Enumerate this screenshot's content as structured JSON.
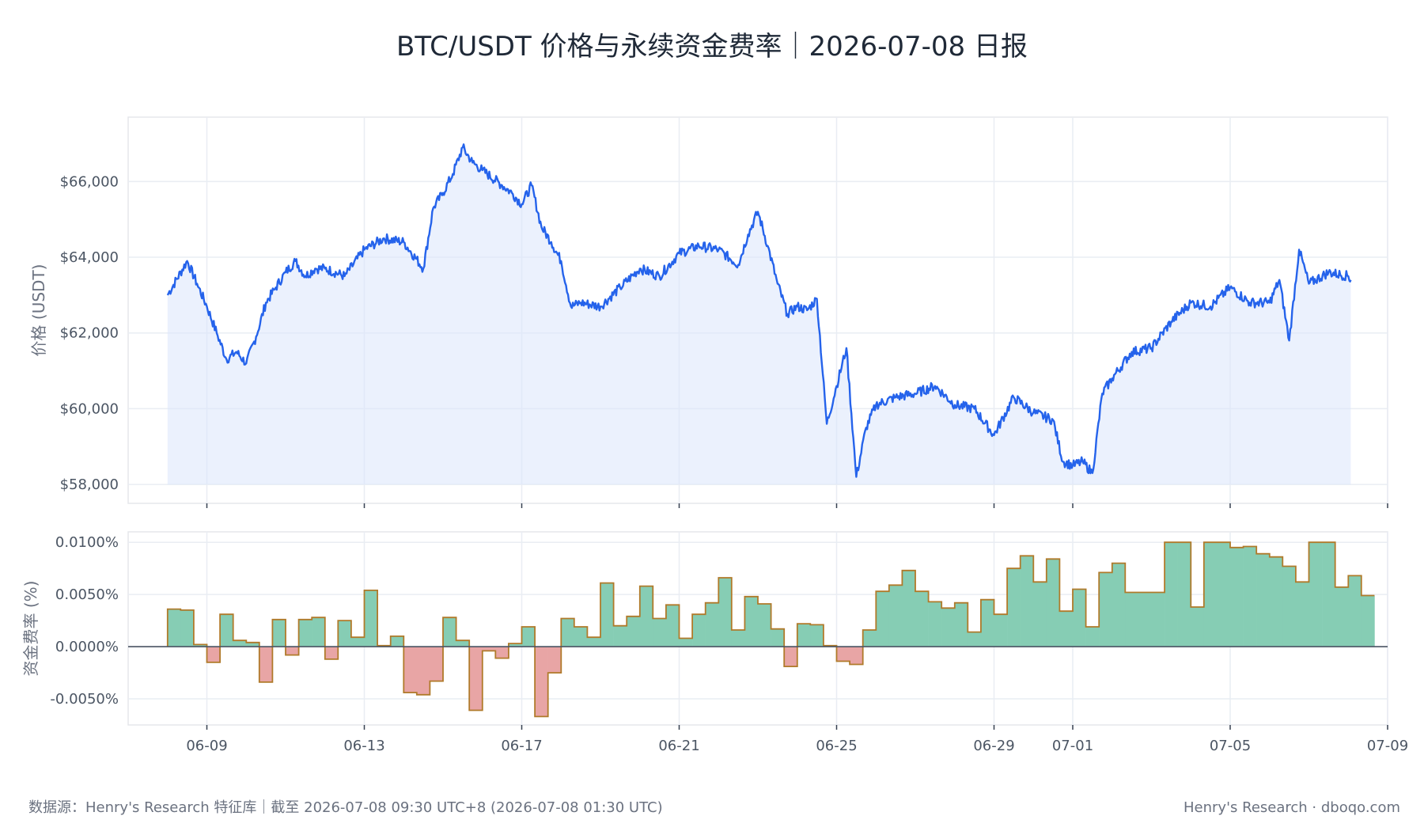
{
  "title": "BTC/USDT 价格与永续资金费率｜2026-07-08 日报",
  "footer": {
    "source": "数据源：Henry's Research 特征库｜截至 2026-07-08 09:30 UTC+8 (2026-07-08 01:30 UTC)",
    "brand": "Henry's Research · dboqo.com"
  },
  "colors": {
    "price_line": "#2563eb",
    "price_fill": "#dbe6fb",
    "positive_fill": "#86cdb4",
    "negative_fill": "#e8a5a5",
    "step_line": "#b07a2a",
    "zero_line": "#4b5563"
  },
  "chart_data": [
    {
      "type": "line",
      "ylabel": "价格 (USDT)",
      "xlabel": "",
      "x_range": [
        "2026-06-07",
        "2026-07-09"
      ],
      "ylim": [
        57500,
        67700
      ],
      "y_ticks": [
        58000,
        60000,
        62000,
        64000,
        66000
      ],
      "y_tick_labels": [
        "$58,000",
        "$60,000",
        "$62,000",
        "$64,000",
        "$66,000"
      ],
      "x_ticks": [
        "2026-06-09",
        "2026-06-13",
        "2026-06-17",
        "2026-06-21",
        "2026-06-25",
        "2026-06-29",
        "2026-07-01",
        "2026-07-05",
        "2026-07-09"
      ],
      "grid": true,
      "area_fill": true,
      "series": [
        {
          "x": [
            "2026-06-08 00:00",
            "2026-06-08 12:00",
            "2026-06-08 18:00",
            "2026-06-09 00:00",
            "2026-06-09 06:00",
            "2026-06-09 12:00",
            "2026-06-09 18:00",
            "2026-06-10 00:00",
            "2026-06-10 06:00",
            "2026-06-10 12:00",
            "2026-06-10 18:00",
            "2026-06-11 00:00",
            "2026-06-11 06:00",
            "2026-06-11 12:00",
            "2026-06-11 18:00",
            "2026-06-12 00:00",
            "2026-06-12 12:00",
            "2026-06-13 00:00",
            "2026-06-13 12:00",
            "2026-06-14 00:00",
            "2026-06-14 12:00",
            "2026-06-14 18:00",
            "2026-06-15 00:00",
            "2026-06-15 06:00",
            "2026-06-15 12:00",
            "2026-06-15 18:00",
            "2026-06-16 00:00",
            "2026-06-16 12:00",
            "2026-06-16 18:00",
            "2026-06-17 00:00",
            "2026-06-17 06:00",
            "2026-06-17 12:00",
            "2026-06-17 18:00",
            "2026-06-18 00:00",
            "2026-06-18 06:00",
            "2026-06-18 12:00",
            "2026-06-19 00:00",
            "2026-06-19 12:00",
            "2026-06-20 00:00",
            "2026-06-20 12:00",
            "2026-06-21 00:00",
            "2026-06-21 12:00",
            "2026-06-22 00:00",
            "2026-06-22 12:00",
            "2026-06-22 18:00",
            "2026-06-23 00:00",
            "2026-06-23 06:00",
            "2026-06-23 12:00",
            "2026-06-23 18:00",
            "2026-06-24 00:00",
            "2026-06-24 06:00",
            "2026-06-24 12:00",
            "2026-06-24 18:00",
            "2026-06-25 00:00",
            "2026-06-25 06:00",
            "2026-06-25 12:00",
            "2026-06-25 18:00",
            "2026-06-26 00:00",
            "2026-06-26 12:00",
            "2026-06-27 00:00",
            "2026-06-27 12:00",
            "2026-06-28 00:00",
            "2026-06-28 12:00",
            "2026-06-29 00:00",
            "2026-06-29 12:00",
            "2026-06-30 00:00",
            "2026-06-30 12:00",
            "2026-06-30 18:00",
            "2026-07-01 00:00",
            "2026-07-01 06:00",
            "2026-07-01 12:00",
            "2026-07-01 18:00",
            "2026-07-02 00:00",
            "2026-07-02 12:00",
            "2026-07-03 00:00",
            "2026-07-03 12:00",
            "2026-07-04 00:00",
            "2026-07-04 12:00",
            "2026-07-05 00:00",
            "2026-07-05 12:00",
            "2026-07-06 00:00",
            "2026-07-06 06:00",
            "2026-07-06 12:00",
            "2026-07-06 18:00",
            "2026-07-07 00:00",
            "2026-07-07 12:00",
            "2026-07-08 00:00",
            "2026-07-08 01:30"
          ],
          "values": [
            63000,
            63900,
            63300,
            62700,
            62000,
            61300,
            61500,
            61200,
            61900,
            62800,
            63200,
            63600,
            63900,
            63500,
            63700,
            63700,
            63500,
            64200,
            64500,
            64400,
            63700,
            65300,
            65700,
            66200,
            66900,
            66500,
            66300,
            65900,
            65700,
            65400,
            65900,
            64800,
            64400,
            63900,
            62700,
            62800,
            62700,
            63200,
            63700,
            63500,
            64100,
            64300,
            64200,
            63800,
            64600,
            65200,
            64300,
            63300,
            62500,
            62700,
            62600,
            62900,
            59600,
            60600,
            61600,
            58200,
            59500,
            60100,
            60300,
            60400,
            60600,
            60100,
            60000,
            59300,
            60300,
            59900,
            59700,
            58600,
            58500,
            58600,
            58300,
            60400,
            60800,
            61500,
            61600,
            62300,
            62800,
            62700,
            63200,
            62800,
            62800,
            63400,
            61800,
            64200,
            63300,
            63600,
            63500,
            63400
          ]
        }
      ]
    },
    {
      "type": "bar",
      "ylabel": "资金费率 (%)",
      "xlabel": "",
      "step": true,
      "x_range": [
        "2026-06-07",
        "2026-07-09"
      ],
      "ylim": [
        -0.0075,
        0.011
      ],
      "y_ticks": [
        -0.005,
        0.0,
        0.005,
        0.01
      ],
      "y_tick_labels": [
        "-0.0050%",
        "0.0000%",
        "0.0050%",
        "0.0100%"
      ],
      "x_ticks": [
        "2026-06-09",
        "2026-06-13",
        "2026-06-17",
        "2026-06-21",
        "2026-06-25",
        "2026-06-29",
        "2026-07-01",
        "2026-07-05",
        "2026-07-09"
      ],
      "x_tick_labels": [
        "06-09",
        "06-13",
        "06-17",
        "06-21",
        "06-25",
        "06-29",
        "07-01",
        "07-05",
        "07-09"
      ],
      "grid": true,
      "interval_hours": 8,
      "start": "2026-06-08 00:00",
      "values": [
        0.0036,
        0.0035,
        0.0002,
        -0.0015,
        0.0031,
        0.0006,
        0.0004,
        -0.0034,
        0.0026,
        -0.0008,
        0.0026,
        0.0028,
        -0.0012,
        0.0025,
        0.0009,
        0.0054,
        0.0001,
        0.001,
        -0.0044,
        -0.0046,
        -0.0033,
        0.0028,
        0.0006,
        -0.0061,
        -0.0004,
        -0.0011,
        0.0003,
        0.0019,
        -0.0067,
        -0.0025,
        0.0027,
        0.0019,
        0.0009,
        0.0061,
        0.002,
        0.0029,
        0.0058,
        0.0027,
        0.004,
        0.0008,
        0.0031,
        0.0042,
        0.0066,
        0.0016,
        0.0048,
        0.0041,
        0.0017,
        -0.0019,
        0.0022,
        0.0021,
        0.0001,
        -0.0014,
        -0.0017,
        0.0016,
        0.0053,
        0.0059,
        0.0073,
        0.0053,
        0.0043,
        0.0037,
        0.0042,
        0.0014,
        0.0045,
        0.0031,
        0.0075,
        0.0087,
        0.0062,
        0.0084,
        0.0034,
        0.0055,
        0.0019,
        0.0071,
        0.008,
        0.0052,
        0.0052,
        0.0052,
        0.01,
        0.01,
        0.0038,
        0.01,
        0.01,
        0.0095,
        0.0096,
        0.0089,
        0.0086,
        0.0077,
        0.0062,
        0.01,
        0.01,
        0.0057,
        0.0068,
        0.0049
      ]
    }
  ]
}
